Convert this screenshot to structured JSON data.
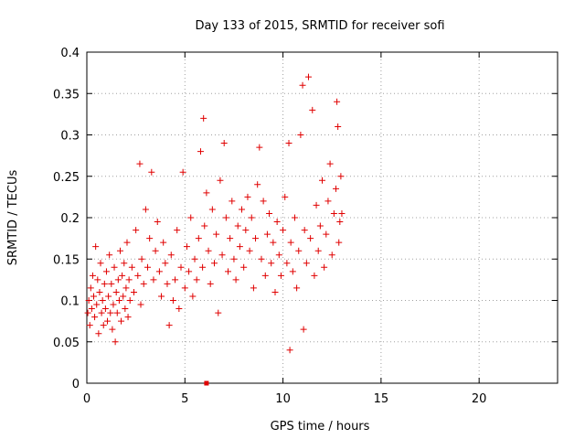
{
  "chart_data": {
    "type": "scatter",
    "title": "Day 133 of 2015, SRMTID for receiver sofi",
    "xlabel": "GPS time / hours",
    "ylabel": "SRMTID / TECUs",
    "xlim": [
      0,
      24
    ],
    "ylim": [
      0,
      0.4
    ],
    "xticks": [
      0,
      5,
      10,
      15,
      20
    ],
    "xtick_labels": [
      "0",
      "5",
      "10",
      "15",
      "20"
    ],
    "yticks": [
      0,
      0.05,
      0.1,
      0.15,
      0.2,
      0.25,
      0.3,
      0.35,
      0.4
    ],
    "ytick_labels": [
      "0",
      "0.05",
      "0.1",
      "0.15",
      "0.2",
      "0.25",
      "0.3",
      "0.35",
      "0.4"
    ],
    "grid": true,
    "marker": "+",
    "color": "#e00000",
    "series": [
      {
        "name": "sofi",
        "points": [
          [
            0.05,
            0.085
          ],
          [
            0.1,
            0.1
          ],
          [
            0.15,
            0.07
          ],
          [
            0.2,
            0.115
          ],
          [
            0.25,
            0.09
          ],
          [
            0.3,
            0.13
          ],
          [
            0.35,
            0.105
          ],
          [
            0.4,
            0.08
          ],
          [
            0.45,
            0.165
          ],
          [
            0.5,
            0.095
          ],
          [
            0.55,
            0.125
          ],
          [
            0.6,
            0.06
          ],
          [
            0.65,
            0.11
          ],
          [
            0.7,
            0.145
          ],
          [
            0.75,
            0.085
          ],
          [
            0.8,
            0.1
          ],
          [
            0.85,
            0.07
          ],
          [
            0.9,
            0.12
          ],
          [
            0.95,
            0.09
          ],
          [
            1.0,
            0.135
          ],
          [
            1.05,
            0.075
          ],
          [
            1.1,
            0.105
          ],
          [
            1.15,
            0.155
          ],
          [
            1.2,
            0.085
          ],
          [
            1.25,
            0.12
          ],
          [
            1.3,
            0.065
          ],
          [
            1.35,
            0.095
          ],
          [
            1.4,
            0.14
          ],
          [
            1.45,
            0.05
          ],
          [
            1.5,
            0.11
          ],
          [
            1.55,
            0.085
          ],
          [
            1.6,
            0.125
          ],
          [
            1.65,
            0.1
          ],
          [
            1.7,
            0.16
          ],
          [
            1.75,
            0.075
          ],
          [
            1.8,
            0.13
          ],
          [
            1.85,
            0.105
          ],
          [
            1.9,
            0.145
          ],
          [
            1.95,
            0.09
          ],
          [
            2.0,
            0.115
          ],
          [
            2.05,
            0.17
          ],
          [
            2.1,
            0.08
          ],
          [
            2.15,
            0.125
          ],
          [
            2.2,
            0.1
          ],
          [
            2.3,
            0.14
          ],
          [
            2.4,
            0.11
          ],
          [
            2.5,
            0.185
          ],
          [
            2.6,
            0.13
          ],
          [
            2.7,
            0.265
          ],
          [
            2.75,
            0.095
          ],
          [
            2.8,
            0.15
          ],
          [
            2.9,
            0.12
          ],
          [
            3.0,
            0.21
          ],
          [
            3.1,
            0.14
          ],
          [
            3.2,
            0.175
          ],
          [
            3.3,
            0.255
          ],
          [
            3.4,
            0.125
          ],
          [
            3.5,
            0.16
          ],
          [
            3.6,
            0.195
          ],
          [
            3.7,
            0.135
          ],
          [
            3.8,
            0.105
          ],
          [
            3.9,
            0.17
          ],
          [
            4.0,
            0.145
          ],
          [
            4.1,
            0.12
          ],
          [
            4.2,
            0.07
          ],
          [
            4.3,
            0.155
          ],
          [
            4.4,
            0.1
          ],
          [
            4.5,
            0.125
          ],
          [
            4.6,
            0.185
          ],
          [
            4.7,
            0.09
          ],
          [
            4.8,
            0.14
          ],
          [
            4.9,
            0.255
          ],
          [
            5.0,
            0.115
          ],
          [
            5.1,
            0.165
          ],
          [
            5.2,
            0.135
          ],
          [
            5.3,
            0.2
          ],
          [
            5.4,
            0.105
          ],
          [
            5.5,
            0.15
          ],
          [
            5.6,
            0.125
          ],
          [
            5.7,
            0.175
          ],
          [
            5.8,
            0.28
          ],
          [
            5.9,
            0.14
          ],
          [
            5.95,
            0.32
          ],
          [
            6.0,
            0.19
          ],
          [
            6.1,
            0.23
          ],
          [
            6.2,
            0.16
          ],
          [
            6.3,
            0.12
          ],
          [
            6.4,
            0.21
          ],
          [
            6.5,
            0.145
          ],
          [
            6.6,
            0.18
          ],
          [
            6.7,
            0.085
          ],
          [
            6.8,
            0.245
          ],
          [
            6.9,
            0.155
          ],
          [
            7.0,
            0.29
          ],
          [
            7.1,
            0.2
          ],
          [
            7.2,
            0.135
          ],
          [
            7.3,
            0.175
          ],
          [
            7.4,
            0.22
          ],
          [
            7.5,
            0.15
          ],
          [
            7.6,
            0.125
          ],
          [
            7.7,
            0.19
          ],
          [
            7.8,
            0.165
          ],
          [
            7.9,
            0.21
          ],
          [
            8.0,
            0.14
          ],
          [
            8.1,
            0.185
          ],
          [
            8.2,
            0.225
          ],
          [
            8.3,
            0.16
          ],
          [
            8.4,
            0.2
          ],
          [
            8.5,
            0.115
          ],
          [
            8.6,
            0.175
          ],
          [
            8.7,
            0.24
          ],
          [
            8.8,
            0.285
          ],
          [
            8.9,
            0.15
          ],
          [
            9.0,
            0.22
          ],
          [
            9.1,
            0.13
          ],
          [
            9.2,
            0.18
          ],
          [
            9.3,
            0.205
          ],
          [
            9.4,
            0.145
          ],
          [
            9.5,
            0.17
          ],
          [
            9.6,
            0.11
          ],
          [
            9.7,
            0.195
          ],
          [
            9.8,
            0.155
          ],
          [
            9.9,
            0.13
          ],
          [
            10.0,
            0.185
          ],
          [
            10.1,
            0.225
          ],
          [
            10.2,
            0.145
          ],
          [
            10.3,
            0.29
          ],
          [
            10.35,
            0.04
          ],
          [
            10.4,
            0.17
          ],
          [
            10.5,
            0.135
          ],
          [
            10.6,
            0.2
          ],
          [
            10.7,
            0.115
          ],
          [
            10.8,
            0.16
          ],
          [
            10.9,
            0.3
          ],
          [
            11.0,
            0.36
          ],
          [
            11.05,
            0.065
          ],
          [
            11.1,
            0.185
          ],
          [
            11.2,
            0.145
          ],
          [
            11.3,
            0.37
          ],
          [
            11.4,
            0.175
          ],
          [
            11.5,
            0.33
          ],
          [
            11.6,
            0.13
          ],
          [
            11.7,
            0.215
          ],
          [
            11.8,
            0.16
          ],
          [
            11.9,
            0.19
          ],
          [
            12.0,
            0.245
          ],
          [
            12.1,
            0.14
          ],
          [
            12.2,
            0.18
          ],
          [
            12.3,
            0.22
          ],
          [
            12.4,
            0.265
          ],
          [
            12.5,
            0.155
          ],
          [
            12.6,
            0.205
          ],
          [
            12.7,
            0.235
          ],
          [
            12.75,
            0.34
          ],
          [
            12.8,
            0.31
          ],
          [
            12.85,
            0.17
          ],
          [
            12.9,
            0.195
          ],
          [
            12.95,
            0.25
          ],
          [
            13.0,
            0.205
          ]
        ]
      }
    ],
    "outlier_marker": {
      "x": 6.1,
      "y": 0.0,
      "shape": "square"
    }
  }
}
